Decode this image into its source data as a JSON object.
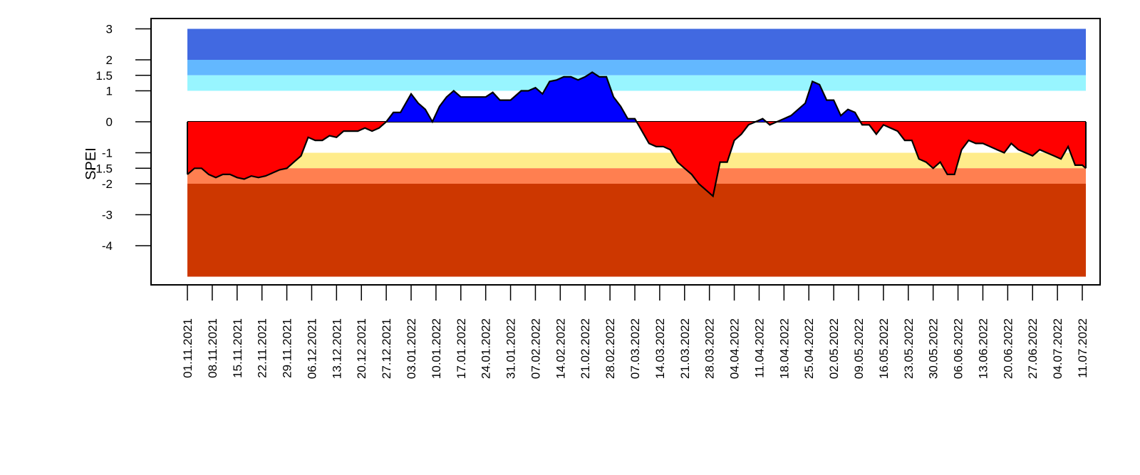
{
  "chart_data": {
    "type": "area",
    "title": "",
    "xlabel": "",
    "ylabel": "SPEI",
    "ylim": [
      -5,
      3
    ],
    "y_ticks": [
      3,
      2,
      1.5,
      1,
      0,
      -1,
      -1.5,
      -2,
      -3,
      -4
    ],
    "y_tick_labels": [
      "3",
      "2",
      "1.5",
      "1",
      "0",
      "-1",
      "-1.5",
      "-2",
      "-3",
      "-4"
    ],
    "x_tick_labels": [
      "01.11.2021",
      "08.11.2021",
      "15.11.2021",
      "22.11.2021",
      "29.11.2021",
      "06.12.2021",
      "13.12.2021",
      "20.12.2021",
      "27.12.2021",
      "03.01.2022",
      "10.01.2022",
      "17.01.2022",
      "24.01.2022",
      "31.01.2022",
      "07.02.2022",
      "14.02.2022",
      "21.02.2022",
      "28.02.2022",
      "07.03.2022",
      "14.03.2022",
      "21.03.2022",
      "28.03.2022",
      "04.04.2022",
      "11.04.2022",
      "18.04.2022",
      "25.04.2022",
      "02.05.2022",
      "09.05.2022",
      "16.05.2022",
      "23.05.2022",
      "30.05.2022",
      "06.06.2022",
      "13.06.2022",
      "20.06.2022",
      "27.06.2022",
      "04.07.2022",
      "11.07.2022"
    ],
    "x_start": "01.11.2021",
    "x_end": "12.07.2022",
    "background_bands": [
      {
        "from": 2,
        "to": 3,
        "color": "#4169E1"
      },
      {
        "from": 1.5,
        "to": 2,
        "color": "#63B8FF"
      },
      {
        "from": 1,
        "to": 1.5,
        "color": "#98F5FF"
      },
      {
        "from": -1.5,
        "to": -1,
        "color": "#FFEC8B"
      },
      {
        "from": -2,
        "to": -1.5,
        "color": "#FF7F50"
      },
      {
        "from": -5,
        "to": -2,
        "color": "#CD3700"
      }
    ],
    "positive_color": "#0000FF",
    "negative_color": "#FF0000",
    "series": [
      {
        "values": [
          [
            "01.11.2021",
            -1.7
          ],
          [
            "03.11.2021",
            -1.5
          ],
          [
            "05.11.2021",
            -1.5
          ],
          [
            "07.11.2021",
            -1.7
          ],
          [
            "09.11.2021",
            -1.8
          ],
          [
            "11.11.2021",
            -1.7
          ],
          [
            "13.11.2021",
            -1.7
          ],
          [
            "15.11.2021",
            -1.8
          ],
          [
            "17.11.2021",
            -1.85
          ],
          [
            "19.11.2021",
            -1.75
          ],
          [
            "21.11.2021",
            -1.8
          ],
          [
            "23.11.2021",
            -1.75
          ],
          [
            "25.11.2021",
            -1.65
          ],
          [
            "27.11.2021",
            -1.55
          ],
          [
            "29.11.2021",
            -1.5
          ],
          [
            "01.12.2021",
            -1.3
          ],
          [
            "03.12.2021",
            -1.1
          ],
          [
            "05.12.2021",
            -0.5
          ],
          [
            "07.12.2021",
            -0.6
          ],
          [
            "09.12.2021",
            -0.6
          ],
          [
            "11.12.2021",
            -0.45
          ],
          [
            "13.12.2021",
            -0.5
          ],
          [
            "15.12.2021",
            -0.3
          ],
          [
            "17.12.2021",
            -0.3
          ],
          [
            "19.12.2021",
            -0.3
          ],
          [
            "21.12.2021",
            -0.2
          ],
          [
            "23.12.2021",
            -0.3
          ],
          [
            "25.12.2021",
            -0.2
          ],
          [
            "27.12.2021",
            0.0
          ],
          [
            "29.12.2021",
            0.3
          ],
          [
            "31.12.2021",
            0.3
          ],
          [
            "03.01.2022",
            0.9
          ],
          [
            "05.01.2022",
            0.6
          ],
          [
            "07.01.2022",
            0.4
          ],
          [
            "09.01.2022",
            0.0
          ],
          [
            "11.01.2022",
            0.5
          ],
          [
            "13.01.2022",
            0.8
          ],
          [
            "15.01.2022",
            1.0
          ],
          [
            "17.01.2022",
            0.8
          ],
          [
            "21.01.2022",
            0.8
          ],
          [
            "24.01.2022",
            0.8
          ],
          [
            "26.01.2022",
            0.95
          ],
          [
            "28.01.2022",
            0.7
          ],
          [
            "31.01.2022",
            0.7
          ],
          [
            "03.02.2022",
            1.0
          ],
          [
            "05.02.2022",
            1.0
          ],
          [
            "07.02.2022",
            1.1
          ],
          [
            "09.02.2022",
            0.9
          ],
          [
            "11.02.2022",
            1.3
          ],
          [
            "13.02.2022",
            1.35
          ],
          [
            "15.02.2022",
            1.45
          ],
          [
            "17.02.2022",
            1.45
          ],
          [
            "19.02.2022",
            1.35
          ],
          [
            "21.02.2022",
            1.45
          ],
          [
            "23.02.2022",
            1.6
          ],
          [
            "25.02.2022",
            1.45
          ],
          [
            "27.02.2022",
            1.45
          ],
          [
            "01.03.2022",
            0.8
          ],
          [
            "03.03.2022",
            0.5
          ],
          [
            "05.03.2022",
            0.1
          ],
          [
            "07.03.2022",
            0.1
          ],
          [
            "09.03.2022",
            -0.3
          ],
          [
            "11.03.2022",
            -0.7
          ],
          [
            "13.03.2022",
            -0.8
          ],
          [
            "15.03.2022",
            -0.8
          ],
          [
            "17.03.2022",
            -0.9
          ],
          [
            "19.03.2022",
            -1.3
          ],
          [
            "21.03.2022",
            -1.5
          ],
          [
            "23.03.2022",
            -1.7
          ],
          [
            "25.03.2022",
            -2.0
          ],
          [
            "27.03.2022",
            -2.2
          ],
          [
            "29.03.2022",
            -2.4
          ],
          [
            "31.03.2022",
            -1.3
          ],
          [
            "02.04.2022",
            -1.3
          ],
          [
            "04.04.2022",
            -0.6
          ],
          [
            "06.04.2022",
            -0.4
          ],
          [
            "08.04.2022",
            -0.1
          ],
          [
            "10.04.2022",
            0.0
          ],
          [
            "12.04.2022",
            0.1
          ],
          [
            "14.04.2022",
            -0.1
          ],
          [
            "16.04.2022",
            0.0
          ],
          [
            "18.04.2022",
            0.1
          ],
          [
            "20.04.2022",
            0.2
          ],
          [
            "22.04.2022",
            0.4
          ],
          [
            "24.04.2022",
            0.6
          ],
          [
            "26.04.2022",
            1.3
          ],
          [
            "28.04.2022",
            1.2
          ],
          [
            "30.04.2022",
            0.7
          ],
          [
            "02.05.2022",
            0.7
          ],
          [
            "04.05.2022",
            0.2
          ],
          [
            "06.05.2022",
            0.4
          ],
          [
            "08.05.2022",
            0.3
          ],
          [
            "10.05.2022",
            -0.1
          ],
          [
            "12.05.2022",
            -0.1
          ],
          [
            "14.05.2022",
            -0.4
          ],
          [
            "16.05.2022",
            -0.1
          ],
          [
            "18.05.2022",
            -0.2
          ],
          [
            "20.05.2022",
            -0.3
          ],
          [
            "22.05.2022",
            -0.6
          ],
          [
            "24.05.2022",
            -0.6
          ],
          [
            "26.05.2022",
            -1.2
          ],
          [
            "28.05.2022",
            -1.3
          ],
          [
            "30.05.2022",
            -1.5
          ],
          [
            "01.06.2022",
            -1.3
          ],
          [
            "03.06.2022",
            -1.7
          ],
          [
            "05.06.2022",
            -1.7
          ],
          [
            "07.06.2022",
            -0.9
          ],
          [
            "09.06.2022",
            -0.6
          ],
          [
            "11.06.2022",
            -0.7
          ],
          [
            "13.06.2022",
            -0.7
          ],
          [
            "15.06.2022",
            -0.8
          ],
          [
            "17.06.2022",
            -0.9
          ],
          [
            "19.06.2022",
            -1.0
          ],
          [
            "21.06.2022",
            -0.7
          ],
          [
            "23.06.2022",
            -0.9
          ],
          [
            "25.06.2022",
            -1.0
          ],
          [
            "27.06.2022",
            -1.1
          ],
          [
            "29.06.2022",
            -0.9
          ],
          [
            "01.07.2022",
            -1.0
          ],
          [
            "03.07.2022",
            -1.1
          ],
          [
            "05.07.2022",
            -1.2
          ],
          [
            "07.07.2022",
            -0.8
          ],
          [
            "09.07.2022",
            -1.4
          ],
          [
            "11.07.2022",
            -1.4
          ],
          [
            "12.07.2022",
            -1.5
          ]
        ]
      }
    ],
    "grid": false,
    "legend": "none"
  }
}
